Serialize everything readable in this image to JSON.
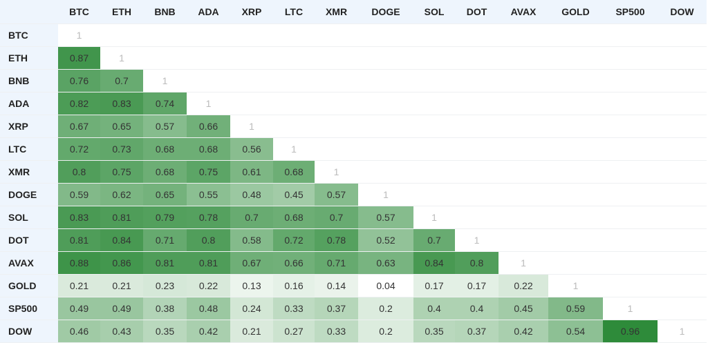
{
  "table": {
    "columns": [
      "BTC",
      "ETH",
      "BNB",
      "ADA",
      "XRP",
      "LTC",
      "XMR",
      "DOGE",
      "SOL",
      "DOT",
      "AVAX",
      "GOLD",
      "SP500",
      "DOW"
    ],
    "rows": [
      {
        "label": "BTC",
        "values": [
          1
        ]
      },
      {
        "label": "ETH",
        "values": [
          0.87,
          1
        ]
      },
      {
        "label": "BNB",
        "values": [
          0.76,
          0.7,
          1
        ]
      },
      {
        "label": "ADA",
        "values": [
          0.82,
          0.83,
          0.74,
          1
        ]
      },
      {
        "label": "XRP",
        "values": [
          0.67,
          0.65,
          0.57,
          0.66,
          1
        ]
      },
      {
        "label": "LTC",
        "values": [
          0.72,
          0.73,
          0.68,
          0.68,
          0.56,
          1
        ]
      },
      {
        "label": "XMR",
        "values": [
          0.8,
          0.75,
          0.68,
          0.75,
          0.61,
          0.68,
          1
        ]
      },
      {
        "label": "DOGE",
        "values": [
          0.59,
          0.62,
          0.65,
          0.55,
          0.48,
          0.45,
          0.57,
          1
        ]
      },
      {
        "label": "SOL",
        "values": [
          0.83,
          0.81,
          0.79,
          0.78,
          0.7,
          0.68,
          0.7,
          0.57,
          1
        ]
      },
      {
        "label": "DOT",
        "values": [
          0.81,
          0.84,
          0.71,
          0.8,
          0.58,
          0.72,
          0.78,
          0.52,
          0.7,
          1
        ]
      },
      {
        "label": "AVAX",
        "values": [
          0.88,
          0.86,
          0.81,
          0.81,
          0.67,
          0.66,
          0.71,
          0.63,
          0.84,
          0.8,
          1
        ]
      },
      {
        "label": "GOLD",
        "values": [
          0.21,
          0.21,
          0.23,
          0.22,
          0.13,
          0.16,
          0.14,
          0.04,
          0.17,
          0.17,
          0.22,
          1
        ]
      },
      {
        "label": "SP500",
        "values": [
          0.49,
          0.49,
          0.38,
          0.48,
          0.24,
          0.33,
          0.37,
          0.2,
          0.4,
          0.4,
          0.45,
          0.59,
          1
        ]
      },
      {
        "label": "DOW",
        "values": [
          0.46,
          0.43,
          0.35,
          0.42,
          0.21,
          0.27,
          0.33,
          0.2,
          0.35,
          0.37,
          0.42,
          0.54,
          0.96,
          1
        ]
      }
    ]
  }
}
